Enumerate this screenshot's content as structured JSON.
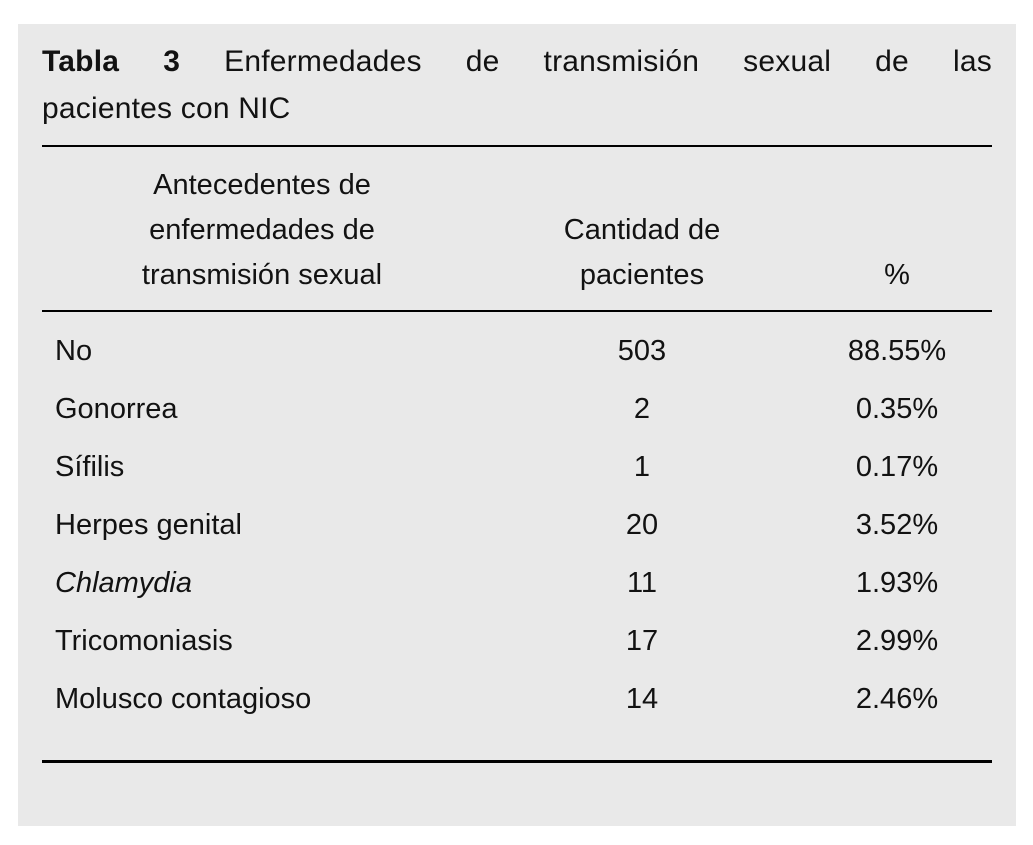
{
  "colors": {
    "panel_bg": "#e9e9e9",
    "text": "#121212",
    "rule": "#000000",
    "page_bg": "#ffffff"
  },
  "caption": {
    "line1_words": [
      "Tabla",
      "3",
      "Enfermedades",
      "de",
      "transmisión",
      "sexual",
      "de",
      "las"
    ],
    "line2": "pacientes con NIC",
    "full_text": "Tabla 3 Enfermedades de transmisión sexual de las pacientes con NIC"
  },
  "table": {
    "headers": [
      "Antecedentes de enfermedades de transmisión sexual",
      "Cantidad de pacientes",
      "%"
    ],
    "rows": [
      {
        "label": "No",
        "count": "503",
        "pct": "88.55%"
      },
      {
        "label": "Gonorrea",
        "count": "2",
        "pct": "0.35%"
      },
      {
        "label": "Sífilis",
        "count": "1",
        "pct": "0.17%"
      },
      {
        "label": "Herpes genital",
        "count": "20",
        "pct": "3.52%"
      },
      {
        "label": "Chlamydia",
        "count": "11",
        "pct": "1.93%",
        "italic": true
      },
      {
        "label": "Tricomoniasis",
        "count": "17",
        "pct": "2.99%"
      },
      {
        "label": "Molusco contagioso",
        "count": "14",
        "pct": "2.46%"
      }
    ]
  },
  "chart_data": {
    "type": "table",
    "title": "Tabla 3 Enfermedades de transmisión sexual de las pacientes con NIC",
    "columns": [
      "Antecedentes de enfermedades de transmisión sexual",
      "Cantidad de pacientes",
      "%"
    ],
    "rows": [
      [
        "No",
        503,
        "88.55%"
      ],
      [
        "Gonorrea",
        2,
        "0.35%"
      ],
      [
        "Sífilis",
        1,
        "0.17%"
      ],
      [
        "Herpes genital",
        20,
        "3.52%"
      ],
      [
        "Chlamydia",
        11,
        "1.93%"
      ],
      [
        "Tricomoniasis",
        17,
        "2.99%"
      ],
      [
        "Molusco contagioso",
        14,
        "2.46%"
      ]
    ]
  }
}
